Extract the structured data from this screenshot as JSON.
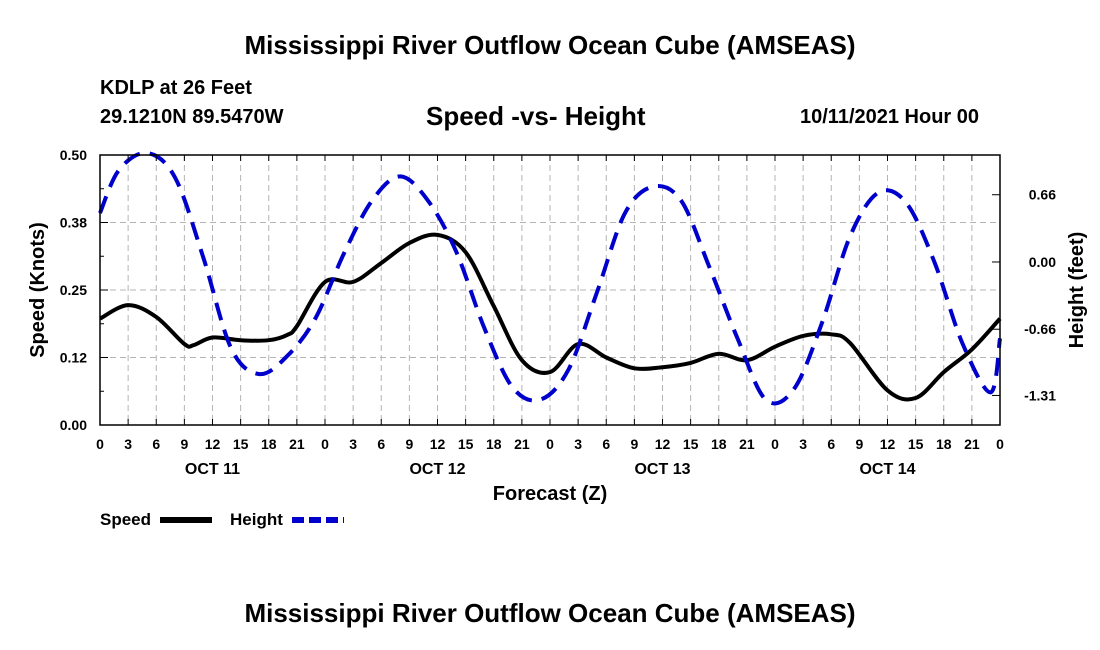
{
  "header": {
    "title": "Mississippi River Outflow Ocean Cube (AMSEAS)",
    "station": "KDLP at 26 Feet",
    "coordinates": "29.1210N  89.5470W",
    "subtitle": "Speed -vs- Height",
    "datetime": "10/11/2021 Hour 00"
  },
  "footer": {
    "title": "Mississippi River Outflow Ocean Cube (AMSEAS)"
  },
  "chart_data": {
    "type": "line",
    "xlabel": "Forecast (Z)",
    "ylabel_left": "Speed (Knots)",
    "ylabel_right": "Height (feet)",
    "x_range_hours": [
      0,
      96
    ],
    "x_tick_hours": [
      0,
      3,
      6,
      9,
      12,
      15,
      18,
      21,
      24,
      27,
      30,
      33,
      36,
      39,
      42,
      45,
      48,
      51,
      54,
      57,
      60,
      63,
      66,
      69,
      72,
      75,
      78,
      81,
      84,
      87,
      90,
      93,
      96
    ],
    "x_tick_labels": [
      "0",
      "3",
      "6",
      "9",
      "12",
      "15",
      "18",
      "21",
      "0",
      "3",
      "6",
      "9",
      "12",
      "15",
      "18",
      "21",
      "0",
      "3",
      "6",
      "9",
      "12",
      "15",
      "18",
      "21",
      "0",
      "3",
      "6",
      "9",
      "12",
      "15",
      "18",
      "21",
      "0"
    ],
    "day_labels": [
      {
        "label": "OCT 11",
        "hour": 12
      },
      {
        "label": "OCT 12",
        "hour": 36
      },
      {
        "label": "OCT 13",
        "hour": 60
      },
      {
        "label": "OCT 14",
        "hour": 84
      }
    ],
    "y_left": {
      "range": [
        0,
        0.5
      ],
      "ticks": [
        0,
        0.125,
        0.25,
        0.375,
        0.5
      ],
      "tick_labels": [
        "0.00",
        "0.12",
        "0.25",
        "0.38",
        "0.50"
      ]
    },
    "y_right": {
      "range": [
        -1.6,
        1.05
      ],
      "ticks": [
        0.66,
        0.0,
        -0.66,
        -1.31
      ],
      "tick_labels": [
        "0.66",
        "0.00",
        "-0.66",
        "-1.31"
      ]
    },
    "grid": true,
    "legend_position": "bottom-left",
    "series": [
      {
        "name": "Speed",
        "axis": "left",
        "color": "#000000",
        "dash": "solid",
        "x": [
          0,
          3,
          6,
          9,
          10,
          12,
          15,
          18,
          20,
          21,
          24,
          27,
          30,
          33,
          36,
          39,
          42,
          45,
          48,
          51,
          54,
          57,
          60,
          63,
          66,
          69,
          72,
          75,
          78,
          80,
          84,
          87,
          90,
          93,
          96
        ],
        "y": [
          0.197,
          0.222,
          0.2,
          0.15,
          0.148,
          0.162,
          0.157,
          0.157,
          0.167,
          0.183,
          0.265,
          0.265,
          0.3,
          0.337,
          0.352,
          0.32,
          0.22,
          0.12,
          0.098,
          0.15,
          0.125,
          0.105,
          0.107,
          0.115,
          0.132,
          0.12,
          0.145,
          0.165,
          0.168,
          0.152,
          0.064,
          0.05,
          0.098,
          0.14,
          0.197
        ]
      },
      {
        "name": "Height",
        "axis": "right",
        "color": "#0000cc",
        "dash": "dashed",
        "x": [
          0,
          2,
          5,
          8,
          11,
          14,
          17,
          20,
          23,
          26,
          29,
          32,
          35,
          38,
          41,
          44,
          47,
          50,
          53,
          56,
          59,
          62,
          65,
          68,
          71,
          74,
          77,
          80,
          83,
          86,
          89,
          92,
          95,
          96
        ],
        "y": [
          0.48,
          0.9,
          1.07,
          0.83,
          0.05,
          -0.85,
          -1.1,
          -0.92,
          -0.55,
          0.08,
          0.6,
          0.84,
          0.6,
          0.1,
          -0.65,
          -1.23,
          -1.35,
          -1.05,
          -0.3,
          0.48,
          0.74,
          0.6,
          -0.05,
          -0.75,
          -1.35,
          -1.25,
          -0.6,
          0.25,
          0.68,
          0.58,
          0.0,
          -0.8,
          -1.28,
          -0.75
        ]
      }
    ]
  }
}
